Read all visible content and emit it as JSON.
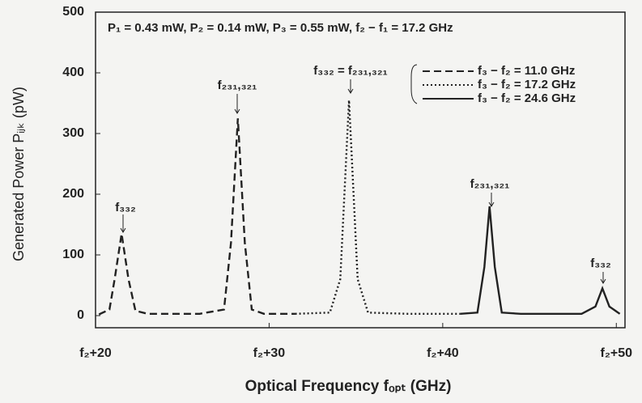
{
  "chart_data": {
    "type": "line",
    "xlabel": "Optical Frequency  fₒₚₜ (GHz)",
    "ylabel": "Generated Power Pᵢⱼₖ (pW)",
    "xlim": [
      20,
      50.5
    ],
    "ylim": [
      -20,
      500
    ],
    "yticks": [
      0,
      100,
      200,
      300,
      400,
      500
    ],
    "xticks": [
      {
        "value": 20,
        "label": "f₂+20"
      },
      {
        "value": 30,
        "label": "f₂+30"
      },
      {
        "value": 40,
        "label": "f₂+40"
      },
      {
        "value": 50,
        "label": "f₂+50"
      }
    ],
    "legend": "upper right",
    "annotations": [
      "P₁ = 0.43 mW, P₂ = 0.14 mW, P₃ = 0.55 mW, f₂ − f₁ = 17.2 GHz",
      "f₃₃₂",
      "f₂₃₁,₃₂₁",
      "f₃₃₂ = f₂₃₁,₃₂₁",
      "f₂₃₁,₃₂₁",
      "f₃₃₂"
    ],
    "series": [
      {
        "name": "f₃ − f₂ = 11.0 GHz",
        "color": "#222222",
        "dash": "dashed",
        "x": [
          20.2,
          20.8,
          21.1,
          21.5,
          21.9,
          22.3,
          23,
          26,
          27.4,
          27.8,
          28.2,
          28.6,
          29.0,
          29.7,
          31.5
        ],
        "values": [
          2,
          10,
          60,
          135,
          60,
          8,
          3,
          3,
          10,
          120,
          325,
          120,
          10,
          3,
          3
        ]
      },
      {
        "name": "f₃ − f₂ = 17.2 GHz",
        "color": "#222222",
        "dash": "dotted",
        "x": [
          31.5,
          33.5,
          34.1,
          34.6,
          35.1,
          35.7,
          38,
          41
        ],
        "values": [
          3,
          5,
          60,
          355,
          60,
          5,
          3,
          3
        ]
      },
      {
        "name": "f₃ − f₂ = 24.6 GHz",
        "color": "#222222",
        "dash": "solid",
        "x": [
          41,
          42,
          42.4,
          42.7,
          43.0,
          43.4,
          44.5,
          48,
          48.8,
          49.2,
          49.6,
          50.2
        ],
        "values": [
          3,
          5,
          80,
          180,
          80,
          5,
          3,
          3,
          15,
          45,
          15,
          3
        ]
      }
    ]
  }
}
